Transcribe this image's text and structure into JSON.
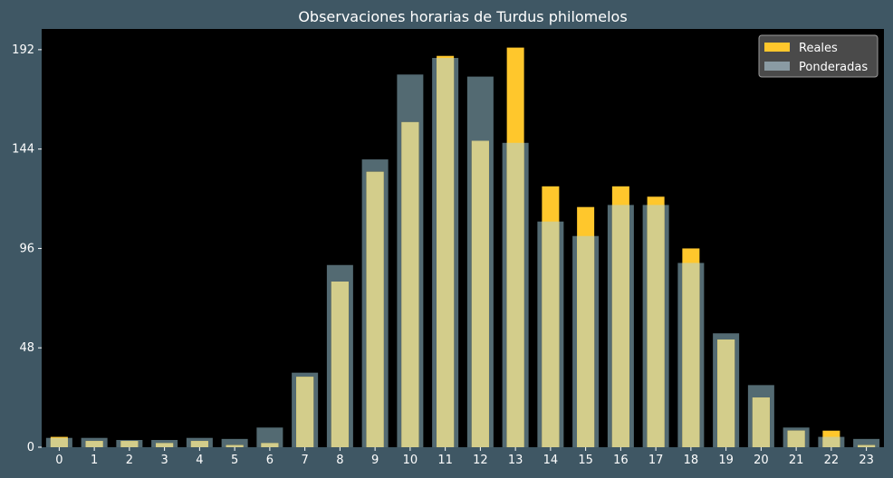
{
  "chart_data": {
    "type": "bar",
    "title": "Observaciones horarias de Turdus philomelos",
    "xlabel": "",
    "ylabel": "",
    "categories": [
      "0",
      "1",
      "2",
      "3",
      "4",
      "5",
      "6",
      "7",
      "8",
      "9",
      "10",
      "11",
      "12",
      "13",
      "14",
      "15",
      "16",
      "17",
      "18",
      "19",
      "20",
      "21",
      "22",
      "23"
    ],
    "series": [
      {
        "name": "Reales",
        "color": "#ffc72c",
        "values": [
          5,
          3,
          3,
          2,
          3,
          1,
          2,
          34,
          80,
          133,
          157,
          189,
          148,
          193,
          126,
          116,
          126,
          121,
          96,
          52,
          24,
          8,
          8,
          1
        ]
      },
      {
        "name": "Ponderadas",
        "color": "#8a9ba3",
        "values": [
          4.5,
          4.5,
          3.5,
          3.5,
          4.5,
          4,
          9.5,
          36,
          88,
          139,
          180,
          188,
          179,
          147,
          109,
          102,
          117,
          117,
          89,
          55,
          30,
          9.5,
          5,
          4
        ]
      }
    ],
    "ylim": [
      0,
      202
    ],
    "yticks": [
      0,
      48,
      96,
      144,
      192
    ],
    "grid": false,
    "legend": "top-right",
    "colors": {
      "figure_background": "#3f5764",
      "plot_background": "#000000",
      "text": "#ffffff",
      "overlap": "#d3cd8b"
    }
  }
}
